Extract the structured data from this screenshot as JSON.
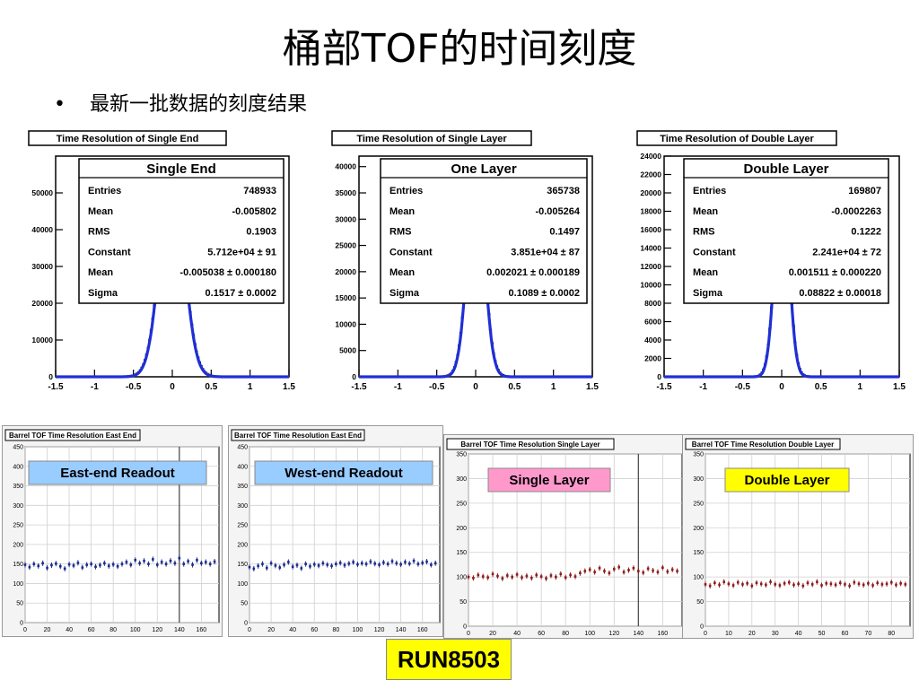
{
  "slide": {
    "title": "桶部TOF的时间刻度",
    "bullet_marker": "•",
    "bullet": "最新一批数据的刻度结果",
    "run_label": "RUN8503"
  },
  "chart_data": [
    {
      "type": "histogram",
      "title": "Time Resolution of Single End",
      "stats_title": "Single End",
      "stats": [
        {
          "label": "Entries",
          "value": "748933"
        },
        {
          "label": "Mean",
          "value": "-0.005802"
        },
        {
          "label": "RMS",
          "value": "0.1903"
        },
        {
          "label": "Constant",
          "value": "5.712e+04 ± 91"
        },
        {
          "label": "Mean",
          "value": "-0.005038 ± 0.000180"
        },
        {
          "label": "Sigma",
          "value": "0.1517 ± 0.0002"
        }
      ],
      "fit": {
        "constant": 57120,
        "mean": -0.005038,
        "sigma": 0.1517
      },
      "xlim": [
        -1.5,
        1.5
      ],
      "ylim": [
        0,
        60000
      ],
      "xticks": [
        -1.5,
        -1,
        -0.5,
        0,
        0.5,
        1,
        1.5
      ],
      "yticks": [
        0,
        10000,
        20000,
        30000,
        40000,
        50000
      ],
      "line_color": "#1f2fd6"
    },
    {
      "type": "histogram",
      "title": "Time Resolution of Single Layer",
      "stats_title": "One Layer",
      "stats": [
        {
          "label": "Entries",
          "value": "365738"
        },
        {
          "label": "Mean",
          "value": "-0.005264"
        },
        {
          "label": "RMS",
          "value": "0.1497"
        },
        {
          "label": "Constant",
          "value": "3.851e+04 ± 87"
        },
        {
          "label": "Mean",
          "value": "0.002021 ± 0.000189"
        },
        {
          "label": "Sigma",
          "value": "0.1089 ± 0.0002"
        }
      ],
      "fit": {
        "constant": 38510,
        "mean": 0.002021,
        "sigma": 0.1089
      },
      "xlim": [
        -1.5,
        1.5
      ],
      "ylim": [
        0,
        42000
      ],
      "xticks": [
        -1.5,
        -1,
        -0.5,
        0,
        0.5,
        1,
        1.5
      ],
      "yticks": [
        0,
        5000,
        10000,
        15000,
        20000,
        25000,
        30000,
        35000,
        40000
      ],
      "line_color": "#1f2fd6"
    },
    {
      "type": "histogram",
      "title": "Time Resolution of Double Layer",
      "stats_title": "Double Layer",
      "stats": [
        {
          "label": "Entries",
          "value": "169807"
        },
        {
          "label": "Mean",
          "value": "-0.0002263"
        },
        {
          "label": "RMS",
          "value": "0.1222"
        },
        {
          "label": "Constant",
          "value": "2.241e+04 ± 72"
        },
        {
          "label": "Mean",
          "value": "0.001511 ± 0.000220"
        },
        {
          "label": "Sigma",
          "value": "0.08822 ± 0.00018"
        }
      ],
      "fit": {
        "constant": 22410,
        "mean": 0.001511,
        "sigma": 0.08822
      },
      "xlim": [
        -1.5,
        1.5
      ],
      "ylim": [
        0,
        24000
      ],
      "xticks": [
        -1.5,
        -1,
        -0.5,
        0,
        0.5,
        1,
        1.5
      ],
      "yticks": [
        0,
        2000,
        4000,
        6000,
        8000,
        10000,
        12000,
        14000,
        16000,
        18000,
        20000,
        22000,
        24000
      ],
      "line_color": "#1f2fd6"
    },
    {
      "type": "scatter",
      "title": "Barrel TOF Time Resolution East End",
      "label": "East-end Readout",
      "label_color": "#99ccff",
      "point_color": "#1a2a8c",
      "xlim": [
        0,
        176
      ],
      "ylim": [
        0,
        450
      ],
      "xticks": [
        0,
        20,
        40,
        60,
        80,
        100,
        120,
        140,
        160
      ],
      "yticks": [
        0,
        50,
        100,
        150,
        200,
        250,
        300,
        350,
        400,
        450
      ],
      "vline": 140,
      "x": [
        0,
        4,
        8,
        12,
        16,
        20,
        24,
        28,
        32,
        36,
        40,
        44,
        48,
        52,
        56,
        60,
        64,
        68,
        72,
        76,
        80,
        84,
        88,
        92,
        96,
        100,
        104,
        108,
        112,
        116,
        120,
        124,
        128,
        132,
        136,
        140,
        144,
        148,
        152,
        156,
        160,
        164,
        168,
        172
      ],
      "y": [
        148,
        142,
        150,
        145,
        152,
        140,
        147,
        151,
        144,
        138,
        149,
        146,
        153,
        141,
        148,
        150,
        143,
        147,
        152,
        145,
        149,
        144,
        150,
        155,
        148,
        160,
        152,
        158,
        150,
        162,
        148,
        155,
        150,
        158,
        152,
        165,
        150,
        157,
        148,
        160,
        152,
        155,
        150,
        156
      ]
    },
    {
      "type": "scatter",
      "title": "Barrel TOF Time Resolution East End",
      "label": "West-end Readout",
      "label_color": "#99ccff",
      "point_color": "#1a2a8c",
      "xlim": [
        0,
        176
      ],
      "ylim": [
        0,
        450
      ],
      "xticks": [
        0,
        20,
        40,
        60,
        80,
        100,
        120,
        140,
        160
      ],
      "yticks": [
        0,
        50,
        100,
        150,
        200,
        250,
        300,
        350,
        400,
        450
      ],
      "x": [
        0,
        4,
        8,
        12,
        16,
        20,
        24,
        28,
        32,
        36,
        40,
        44,
        48,
        52,
        56,
        60,
        64,
        68,
        72,
        76,
        80,
        84,
        88,
        92,
        96,
        100,
        104,
        108,
        112,
        116,
        120,
        124,
        128,
        132,
        136,
        140,
        144,
        148,
        152,
        156,
        160,
        164,
        168,
        172
      ],
      "y": [
        142,
        138,
        145,
        150,
        140,
        152,
        146,
        141,
        148,
        155,
        143,
        147,
        139,
        150,
        144,
        149,
        146,
        152,
        148,
        145,
        150,
        153,
        147,
        151,
        155,
        149,
        152,
        150,
        156,
        151,
        148,
        154,
        150,
        157,
        152,
        149,
        155,
        151,
        158,
        150,
        153,
        156,
        148,
        152
      ]
    },
    {
      "type": "scatter",
      "title": "Barrel TOF Time Resolution Single Layer",
      "label": "Single Layer",
      "label_color": "#ff99cc",
      "point_color": "#8c1a1a",
      "xlim": [
        0,
        176
      ],
      "ylim": [
        0,
        350
      ],
      "xticks": [
        0,
        20,
        40,
        60,
        80,
        100,
        120,
        140,
        160
      ],
      "yticks": [
        0,
        50,
        100,
        150,
        200,
        250,
        300,
        350
      ],
      "vline": 140,
      "x": [
        0,
        4,
        8,
        12,
        16,
        20,
        24,
        28,
        32,
        36,
        40,
        44,
        48,
        52,
        56,
        60,
        64,
        68,
        72,
        76,
        80,
        84,
        88,
        92,
        96,
        100,
        104,
        108,
        112,
        116,
        120,
        124,
        128,
        132,
        136,
        140,
        144,
        148,
        152,
        156,
        160,
        164,
        168,
        172
      ],
      "y": [
        100,
        98,
        104,
        101,
        99,
        106,
        102,
        97,
        103,
        100,
        105,
        99,
        102,
        98,
        104,
        101,
        97,
        103,
        100,
        106,
        99,
        104,
        101,
        108,
        112,
        115,
        110,
        118,
        112,
        108,
        116,
        120,
        110,
        114,
        118,
        112,
        109,
        117,
        113,
        110,
        119,
        111,
        115,
        112
      ]
    },
    {
      "type": "scatter",
      "title": "Barrel TOF Time Resolution Double Layer",
      "label": "Double Layer",
      "label_color": "#ffff00",
      "point_color": "#8c1a1a",
      "xlim": [
        0,
        88
      ],
      "ylim": [
        0,
        350
      ],
      "xticks": [
        0,
        10,
        20,
        30,
        40,
        50,
        60,
        70,
        80
      ],
      "yticks": [
        0,
        50,
        100,
        150,
        200,
        250,
        300,
        350
      ],
      "x": [
        0,
        2,
        4,
        6,
        8,
        10,
        12,
        14,
        16,
        18,
        20,
        22,
        24,
        26,
        28,
        30,
        32,
        34,
        36,
        38,
        40,
        42,
        44,
        46,
        48,
        50,
        52,
        54,
        56,
        58,
        60,
        62,
        64,
        66,
        68,
        70,
        72,
        74,
        76,
        78,
        80,
        82,
        84,
        86
      ],
      "y": [
        85,
        82,
        88,
        84,
        90,
        86,
        83,
        89,
        85,
        87,
        82,
        88,
        86,
        84,
        90,
        85,
        83,
        87,
        89,
        84,
        86,
        82,
        88,
        85,
        90,
        83,
        87,
        86,
        84,
        88,
        85,
        82,
        89,
        86,
        84,
        87,
        83,
        88,
        85,
        86,
        89,
        84,
        87,
        85
      ]
    }
  ]
}
